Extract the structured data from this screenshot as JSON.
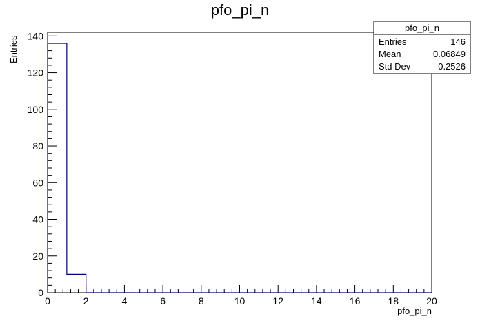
{
  "chart_data": {
    "type": "bar",
    "title": "pfo_pi_n",
    "xlabel": "pfo_pi_n",
    "ylabel": "Entries",
    "xlim": [
      0,
      20
    ],
    "ylim": [
      0,
      142
    ],
    "bin_edges": [
      0,
      1,
      2,
      3,
      4,
      5,
      6,
      7,
      8,
      9,
      10,
      11,
      12,
      13,
      14,
      15,
      16,
      17,
      18,
      19,
      20
    ],
    "values": [
      136,
      10,
      0,
      0,
      0,
      0,
      0,
      0,
      0,
      0,
      0,
      0,
      0,
      0,
      0,
      0,
      0,
      0,
      0,
      0
    ],
    "x_ticks": [
      "0",
      "2",
      "4",
      "6",
      "8",
      "10",
      "12",
      "14",
      "16",
      "18",
      "20"
    ],
    "y_ticks": [
      "0",
      "20",
      "40",
      "60",
      "80",
      "100",
      "120",
      "140"
    ],
    "line_color": "#00007f",
    "grid": false,
    "legend": "none",
    "stats_box": {
      "title": "pfo_pi_n",
      "rows": [
        {
          "label": "Entries",
          "value": "146"
        },
        {
          "label": "Mean",
          "value": "0.06849"
        },
        {
          "label": "Std Dev",
          "value": "0.2526"
        }
      ]
    }
  }
}
